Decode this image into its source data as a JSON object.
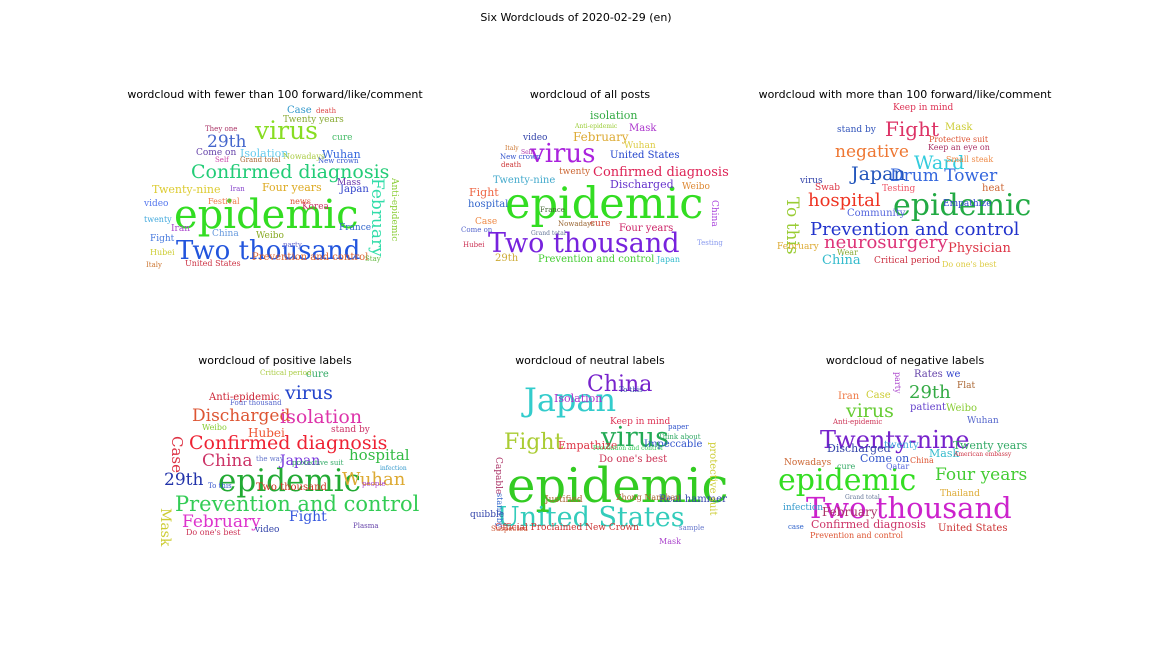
{
  "figure": {
    "title": "Six Wordclouds of 2020-02-29 (en)"
  },
  "chart_data": [
    {
      "type": "wordcloud",
      "title": "wordcloud with fewer than 100 forward/like/comment",
      "words": [
        {
          "text": "epidemic",
          "color": "#33dd22"
        },
        {
          "text": "Two thousand",
          "color": "#2255dd"
        },
        {
          "text": "Confirmed diagnosis",
          "color": "#22cc77"
        },
        {
          "text": "virus",
          "color": "#88dd22"
        },
        {
          "text": "29th",
          "color": "#4466cc"
        },
        {
          "text": "February",
          "color": "#33ddaa"
        },
        {
          "text": "Anti-epidemic",
          "color": "#88cc33"
        },
        {
          "text": "Prevention and control",
          "color": "#dd6633"
        },
        {
          "text": "Twenty-nine",
          "color": "#ddcc33"
        },
        {
          "text": "Four years",
          "color": "#ddaa22"
        },
        {
          "text": "Isolation",
          "color": "#66ccee"
        },
        {
          "text": "Wuhan",
          "color": "#3366dd"
        },
        {
          "text": "Come on",
          "color": "#6644aa"
        },
        {
          "text": "Twenty years",
          "color": "#88aa33"
        },
        {
          "text": "Case",
          "color": "#3399cc"
        },
        {
          "text": "cure",
          "color": "#44bb66"
        },
        {
          "text": "Japan",
          "color": "#3344cc"
        },
        {
          "text": "Korea",
          "color": "#cc3366"
        },
        {
          "text": "Weibo",
          "color": "#88aa22"
        },
        {
          "text": "China",
          "color": "#6699dd"
        },
        {
          "text": "Fight",
          "color": "#4477dd"
        },
        {
          "text": "video",
          "color": "#5577ee"
        },
        {
          "text": "Iran",
          "color": "#aa44cc"
        },
        {
          "text": "Mass",
          "color": "#6633aa"
        },
        {
          "text": "France",
          "color": "#3366cc"
        },
        {
          "text": "United States",
          "color": "#cc3344"
        },
        {
          "text": "news",
          "color": "#dd5533"
        },
        {
          "text": "Festival",
          "color": "#ee7744"
        },
        {
          "text": "Hubei",
          "color": "#cccc33"
        },
        {
          "text": "twenty",
          "color": "#44aadd"
        },
        {
          "text": "Nowadays",
          "color": "#aacc44"
        },
        {
          "text": "Self",
          "color": "#cc44aa"
        },
        {
          "text": "Grand total",
          "color": "#aa6633"
        },
        {
          "text": "They one",
          "color": "#aa3366"
        },
        {
          "text": "death",
          "color": "#dd4444"
        },
        {
          "text": "New crown",
          "color": "#3355cc"
        },
        {
          "text": "party",
          "color": "#6666cc"
        },
        {
          "text": "Italy",
          "color": "#cc7733"
        },
        {
          "text": "Stay",
          "color": "#66bb44"
        },
        {
          "text": "Iran",
          "color": "#8844cc"
        }
      ]
    },
    {
      "type": "wordcloud",
      "title": "wordcloud of all posts",
      "words": [
        {
          "text": "epidemic",
          "color": "#33dd22"
        },
        {
          "text": "Two thousand",
          "color": "#7722dd"
        },
        {
          "text": "virus",
          "color": "#aa22dd"
        },
        {
          "text": "Confirmed diagnosis",
          "color": "#dd2255"
        },
        {
          "text": "February",
          "color": "#ddaa33"
        },
        {
          "text": "isolation",
          "color": "#33aa44"
        },
        {
          "text": "Mask",
          "color": "#aa33cc"
        },
        {
          "text": "United States",
          "color": "#2244cc"
        },
        {
          "text": "Discharged",
          "color": "#6633cc"
        },
        {
          "text": "Twenty-nine",
          "color": "#44aacc"
        },
        {
          "text": "Four years",
          "color": "#cc2266"
        },
        {
          "text": "Prevention and control",
          "color": "#44cc33"
        },
        {
          "text": "29th",
          "color": "#ccaa33"
        },
        {
          "text": "Fight",
          "color": "#ee6644"
        },
        {
          "text": "hospital",
          "color": "#3366cc"
        },
        {
          "text": "video",
          "color": "#3344aa"
        },
        {
          "text": "Wuhan",
          "color": "#ddcc44"
        },
        {
          "text": "China",
          "color": "#aa44dd"
        },
        {
          "text": "Weibo",
          "color": "#dd8833"
        },
        {
          "text": "Japan",
          "color": "#33bbcc"
        },
        {
          "text": "twenty",
          "color": "#cc6633"
        },
        {
          "text": "cure",
          "color": "#cc4433"
        },
        {
          "text": "Case",
          "color": "#ee8844"
        },
        {
          "text": "Come on",
          "color": "#5566cc"
        },
        {
          "text": "Testing",
          "color": "#8899ee"
        },
        {
          "text": "Hubei",
          "color": "#cc3355"
        },
        {
          "text": "France",
          "color": "#446633"
        },
        {
          "text": "Nowadays",
          "color": "#996633"
        },
        {
          "text": "death",
          "color": "#cc3333"
        },
        {
          "text": "New crown",
          "color": "#3355cc"
        },
        {
          "text": "Grand total",
          "color": "#667799"
        },
        {
          "text": "Self",
          "color": "#aa33aa"
        },
        {
          "text": "Italy",
          "color": "#cc7733"
        },
        {
          "text": "Anti-epidemic",
          "color": "#99cc33"
        }
      ]
    },
    {
      "type": "wordcloud",
      "title": "wordcloud with more than 100 forward/like/comment",
      "words": [
        {
          "text": "epidemic",
          "color": "#22aa44"
        },
        {
          "text": "Prevention and control",
          "color": "#2233cc"
        },
        {
          "text": "neurosurgery",
          "color": "#dd3377"
        },
        {
          "text": "Drum Tower",
          "color": "#3366dd"
        },
        {
          "text": "Ward",
          "color": "#33ccdd"
        },
        {
          "text": "Japan",
          "color": "#2255bb"
        },
        {
          "text": "hospital",
          "color": "#ee3322"
        },
        {
          "text": "negative",
          "color": "#ee7733"
        },
        {
          "text": "Fight",
          "color": "#dd3366"
        },
        {
          "text": "To this",
          "color": "#99cc33"
        },
        {
          "text": "China",
          "color": "#33bbcc"
        },
        {
          "text": "Physician",
          "color": "#dd3344"
        },
        {
          "text": "Mask",
          "color": "#cccc33"
        },
        {
          "text": "Empathize",
          "color": "#3344cc"
        },
        {
          "text": "Keep in mind",
          "color": "#dd3355"
        },
        {
          "text": "stand by",
          "color": "#3355bb"
        },
        {
          "text": "Testing",
          "color": "#ee5566"
        },
        {
          "text": "Community",
          "color": "#5566dd"
        },
        {
          "text": "Critical period",
          "color": "#cc3344"
        },
        {
          "text": "Do one's best",
          "color": "#ddcc44"
        },
        {
          "text": "virus",
          "color": "#3344aa"
        },
        {
          "text": "February",
          "color": "#ddaa33"
        },
        {
          "text": "Keep an eye on",
          "color": "#aa3366"
        },
        {
          "text": "Protective suit",
          "color": "#dd5533"
        },
        {
          "text": "Small steak",
          "color": "#ee8844"
        },
        {
          "text": "heat",
          "color": "#cc6633"
        },
        {
          "text": "Wear",
          "color": "#88aa33"
        },
        {
          "text": "Swab",
          "color": "#dd3344"
        }
      ]
    },
    {
      "type": "wordcloud",
      "title": "wordcloud of positive labels",
      "words": [
        {
          "text": "epidemic",
          "color": "#22aa33"
        },
        {
          "text": "Prevention and control",
          "color": "#33cc55"
        },
        {
          "text": "Confirmed diagnosis",
          "color": "#ee2233"
        },
        {
          "text": "Discharged",
          "color": "#dd5533"
        },
        {
          "text": "isolation",
          "color": "#dd33aa"
        },
        {
          "text": "virus",
          "color": "#2244cc"
        },
        {
          "text": "Wuhan",
          "color": "#ddaa33"
        },
        {
          "text": "February",
          "color": "#dd33cc"
        },
        {
          "text": "China",
          "color": "#cc3366"
        },
        {
          "text": "hospital",
          "color": "#33bb44"
        },
        {
          "text": "Japan",
          "color": "#7733dd"
        },
        {
          "text": "Fight",
          "color": "#3355dd"
        },
        {
          "text": "29th",
          "color": "#2233aa"
        },
        {
          "text": "Mask",
          "color": "#cccc33"
        },
        {
          "text": "Case",
          "color": "#dd3344"
        },
        {
          "text": "Hubei",
          "color": "#ee5533"
        },
        {
          "text": "Anti-epidemic",
          "color": "#cc2233"
        },
        {
          "text": "Weibo",
          "color": "#88cc33"
        },
        {
          "text": "Two thousand",
          "color": "#cc3322"
        },
        {
          "text": "cure",
          "color": "#33aa66"
        },
        {
          "text": "stand by",
          "color": "#cc3366"
        },
        {
          "text": "video",
          "color": "#3344aa"
        },
        {
          "text": "protective suit",
          "color": "#33aa66"
        },
        {
          "text": "Do one's best",
          "color": "#cc3355"
        },
        {
          "text": "To this",
          "color": "#3355cc"
        },
        {
          "text": "Critical period",
          "color": "#aacc44"
        },
        {
          "text": "Four thousand",
          "color": "#5566cc"
        },
        {
          "text": "Plasma",
          "color": "#6644aa"
        },
        {
          "text": "people",
          "color": "#aa44cc"
        },
        {
          "text": "infection",
          "color": "#3399cc"
        },
        {
          "text": "the way",
          "color": "#6677cc"
        }
      ]
    },
    {
      "type": "wordcloud",
      "title": "wordcloud of neutral labels",
      "words": [
        {
          "text": "epidemic",
          "color": "#33cc22"
        },
        {
          "text": "United States",
          "color": "#33ccbb"
        },
        {
          "text": "Japan",
          "color": "#33cccc"
        },
        {
          "text": "China",
          "color": "#7722cc"
        },
        {
          "text": "virus",
          "color": "#22aa55"
        },
        {
          "text": "Fight",
          "color": "#aacc33"
        },
        {
          "text": "Isolation",
          "color": "#aa33cc"
        },
        {
          "text": "Empathize",
          "color": "#dd3344"
        },
        {
          "text": "Impeccable",
          "color": "#3355cc"
        },
        {
          "text": "Do one's best",
          "color": "#cc3355"
        },
        {
          "text": "Official Proclaimed New Crown",
          "color": "#cc3333"
        },
        {
          "text": "Real hammer",
          "color": "#3344aa"
        },
        {
          "text": "Justified",
          "color": "#aa6633"
        },
        {
          "text": "Capable",
          "color": "#aa3366"
        },
        {
          "text": "stand by",
          "color": "#3366cc"
        },
        {
          "text": "Suspected",
          "color": "#cc5533"
        },
        {
          "text": "To this",
          "color": "#3344aa"
        },
        {
          "text": "Keep in mind",
          "color": "#dd3355"
        },
        {
          "text": "protective suit",
          "color": "#cccc33"
        },
        {
          "text": "Think about",
          "color": "#33aa66"
        },
        {
          "text": "Mask",
          "color": "#aa44cc"
        },
        {
          "text": "paper",
          "color": "#3355cc"
        },
        {
          "text": "Zhong Nanshan",
          "color": "#aa6633"
        },
        {
          "text": "Prevention and control",
          "color": "#33cc55"
        },
        {
          "text": "quibble",
          "color": "#3344aa"
        },
        {
          "text": "sample",
          "color": "#6677cc"
        }
      ]
    },
    {
      "type": "wordcloud",
      "title": "wordcloud of negative labels",
      "words": [
        {
          "text": "epidemic",
          "color": "#33dd22"
        },
        {
          "text": "Two thousand",
          "color": "#cc22cc"
        },
        {
          "text": "Twenty-nine",
          "color": "#7722cc"
        },
        {
          "text": "Four years",
          "color": "#44cc33"
        },
        {
          "text": "virus",
          "color": "#66cc33"
        },
        {
          "text": "29th",
          "color": "#33aa44"
        },
        {
          "text": "February",
          "color": "#aa3366"
        },
        {
          "text": "Confirmed diagnosis",
          "color": "#cc3366"
        },
        {
          "text": "United States",
          "color": "#cc3333"
        },
        {
          "text": "Discharged",
          "color": "#3344aa"
        },
        {
          "text": "Twenty years",
          "color": "#33aa66"
        },
        {
          "text": "Weibo",
          "color": "#88cc33"
        },
        {
          "text": "Mask",
          "color": "#33bbcc"
        },
        {
          "text": "Come on",
          "color": "#3355cc"
        },
        {
          "text": "patient",
          "color": "#6644cc"
        },
        {
          "text": "Case",
          "color": "#cccc33"
        },
        {
          "text": "Iran",
          "color": "#ee7744"
        },
        {
          "text": "Wuhan",
          "color": "#5566cc"
        },
        {
          "text": "China",
          "color": "#dd5533"
        },
        {
          "text": "twenty",
          "color": "#44aadd"
        },
        {
          "text": "Rates",
          "color": "#6644aa"
        },
        {
          "text": "we",
          "color": "#3344cc"
        },
        {
          "text": "Flat",
          "color": "#aa6633"
        },
        {
          "text": "infection",
          "color": "#3399cc"
        },
        {
          "text": "Nowadays",
          "color": "#cc6633"
        },
        {
          "text": "Prevention and control",
          "color": "#dd5533"
        },
        {
          "text": "Thailand",
          "color": "#ddaa33"
        },
        {
          "text": "cure",
          "color": "#33aa66"
        },
        {
          "text": "Qatar",
          "color": "#5566dd"
        },
        {
          "text": "party",
          "color": "#aa44cc"
        },
        {
          "text": "Anti-epidemic",
          "color": "#cc3355"
        },
        {
          "text": "Grand total",
          "color": "#667799"
        },
        {
          "text": "American embassy",
          "color": "#cc3344"
        },
        {
          "text": "case",
          "color": "#3366cc"
        }
      ]
    }
  ]
}
